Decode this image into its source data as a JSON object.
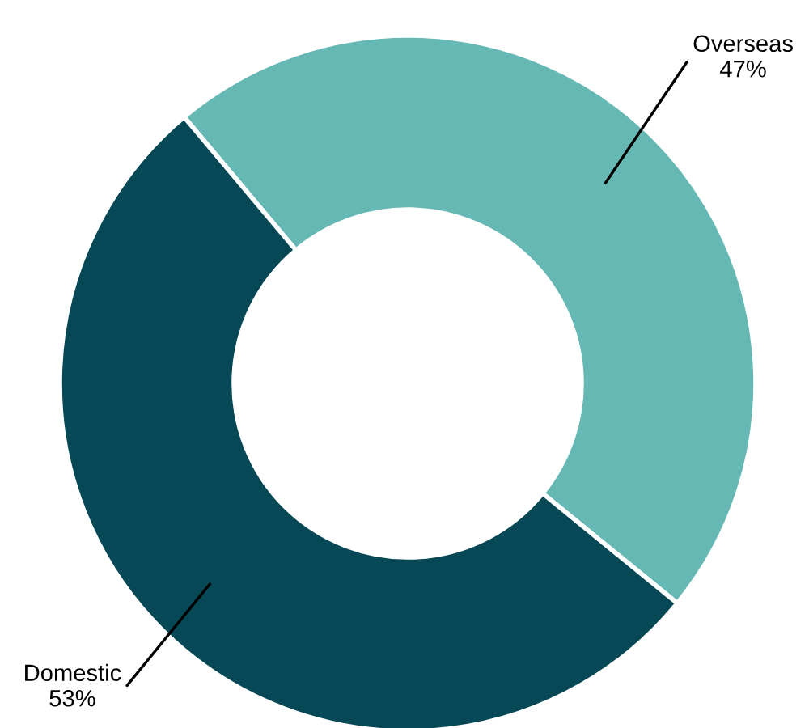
{
  "chart_data": {
    "type": "donut",
    "categories": [
      "Overseas",
      "Domestic"
    ],
    "values": [
      47,
      53
    ],
    "colors": [
      "#66b8b4",
      "#064856"
    ],
    "value_labels": [
      "47%",
      "53%"
    ]
  }
}
